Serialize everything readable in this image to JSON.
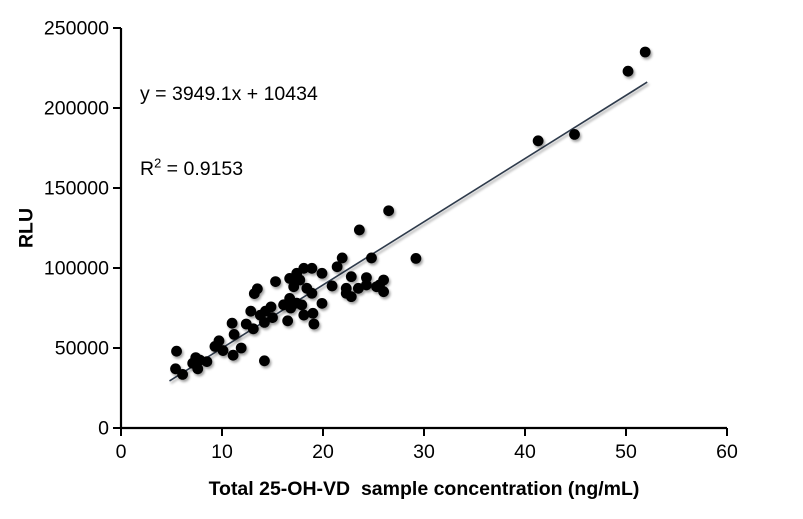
{
  "window": {
    "background": "#ffffff"
  },
  "chart_data": {
    "type": "scatter",
    "title": "",
    "xlabel": "Total 25-OH-VD  sample concentration (ng/mL)",
    "ylabel": "RLU",
    "xlim": [
      0,
      60
    ],
    "ylim": [
      0,
      250000
    ],
    "xticks": [
      0,
      10,
      20,
      30,
      40,
      50,
      60
    ],
    "yticks": [
      0,
      50000,
      100000,
      150000,
      200000,
      250000
    ],
    "xtick_labels": [
      "0",
      "10",
      "20",
      "30",
      "40",
      "50",
      "60"
    ],
    "ytick_labels": [
      "0",
      "50000",
      "100000",
      "150000",
      "200000",
      "250000"
    ],
    "grid": false,
    "legend": false,
    "axis_color": "#000000",
    "point_color": "#000000",
    "annotation": {
      "equation": "y = 3949.1x + 10434",
      "r2_base": "R",
      "r2_sup": "2",
      "r2_rest": " = 0.9153"
    },
    "trendline": {
      "slope": 3949.1,
      "intercept": 10434,
      "x_start": 4.8,
      "x_end": 52.1,
      "color": "#2f3b4c"
    },
    "points": [
      [
        5.5,
        48000
      ],
      [
        5.4,
        37000
      ],
      [
        6.1,
        33500
      ],
      [
        7.1,
        40500
      ],
      [
        7.4,
        44000
      ],
      [
        7.6,
        37000
      ],
      [
        7.8,
        42500
      ],
      [
        8.5,
        41500
      ],
      [
        9.3,
        51000
      ],
      [
        9.7,
        54500
      ],
      [
        10.1,
        48400
      ],
      [
        11.0,
        65500
      ],
      [
        11.2,
        58500
      ],
      [
        11.1,
        45500
      ],
      [
        11.9,
        50000
      ],
      [
        12.4,
        65000
      ],
      [
        12.85,
        73000
      ],
      [
        13.1,
        62000
      ],
      [
        13.2,
        84000
      ],
      [
        13.5,
        87000
      ],
      [
        13.8,
        70500
      ],
      [
        14.2,
        66000
      ],
      [
        14.2,
        42000
      ],
      [
        14.3,
        73000
      ],
      [
        14.85,
        75700
      ],
      [
        15.0,
        69000
      ],
      [
        15.3,
        91500
      ],
      [
        16.1,
        77000
      ],
      [
        16.5,
        67000
      ],
      [
        16.7,
        93500
      ],
      [
        16.7,
        81000
      ],
      [
        16.8,
        75000
      ],
      [
        17.1,
        93500
      ],
      [
        17.1,
        88300
      ],
      [
        17.4,
        96700
      ],
      [
        17.4,
        78000
      ],
      [
        17.7,
        92500
      ],
      [
        17.9,
        76900
      ],
      [
        18.1,
        99800
      ],
      [
        18.1,
        70600
      ],
      [
        18.4,
        87300
      ],
      [
        18.9,
        99800
      ],
      [
        18.9,
        84200
      ],
      [
        19.0,
        71700
      ],
      [
        19.1,
        65000
      ],
      [
        19.9,
        96700
      ],
      [
        19.9,
        77900
      ],
      [
        20.9,
        88800
      ],
      [
        21.4,
        100800
      ],
      [
        21.9,
        106300
      ],
      [
        22.3,
        84200
      ],
      [
        22.3,
        87300
      ],
      [
        22.8,
        94600
      ],
      [
        22.8,
        82100
      ],
      [
        23.5,
        87300
      ],
      [
        23.6,
        123800
      ],
      [
        24.3,
        94000
      ],
      [
        24.3,
        89400
      ],
      [
        24.8,
        106300
      ],
      [
        25.3,
        88300
      ],
      [
        25.6,
        89400
      ],
      [
        26.0,
        85200
      ],
      [
        26.0,
        92500
      ],
      [
        26.5,
        135800
      ],
      [
        29.2,
        106000
      ],
      [
        41.3,
        179500
      ],
      [
        44.9,
        183500
      ],
      [
        50.2,
        223000
      ],
      [
        51.9,
        235000
      ]
    ]
  }
}
